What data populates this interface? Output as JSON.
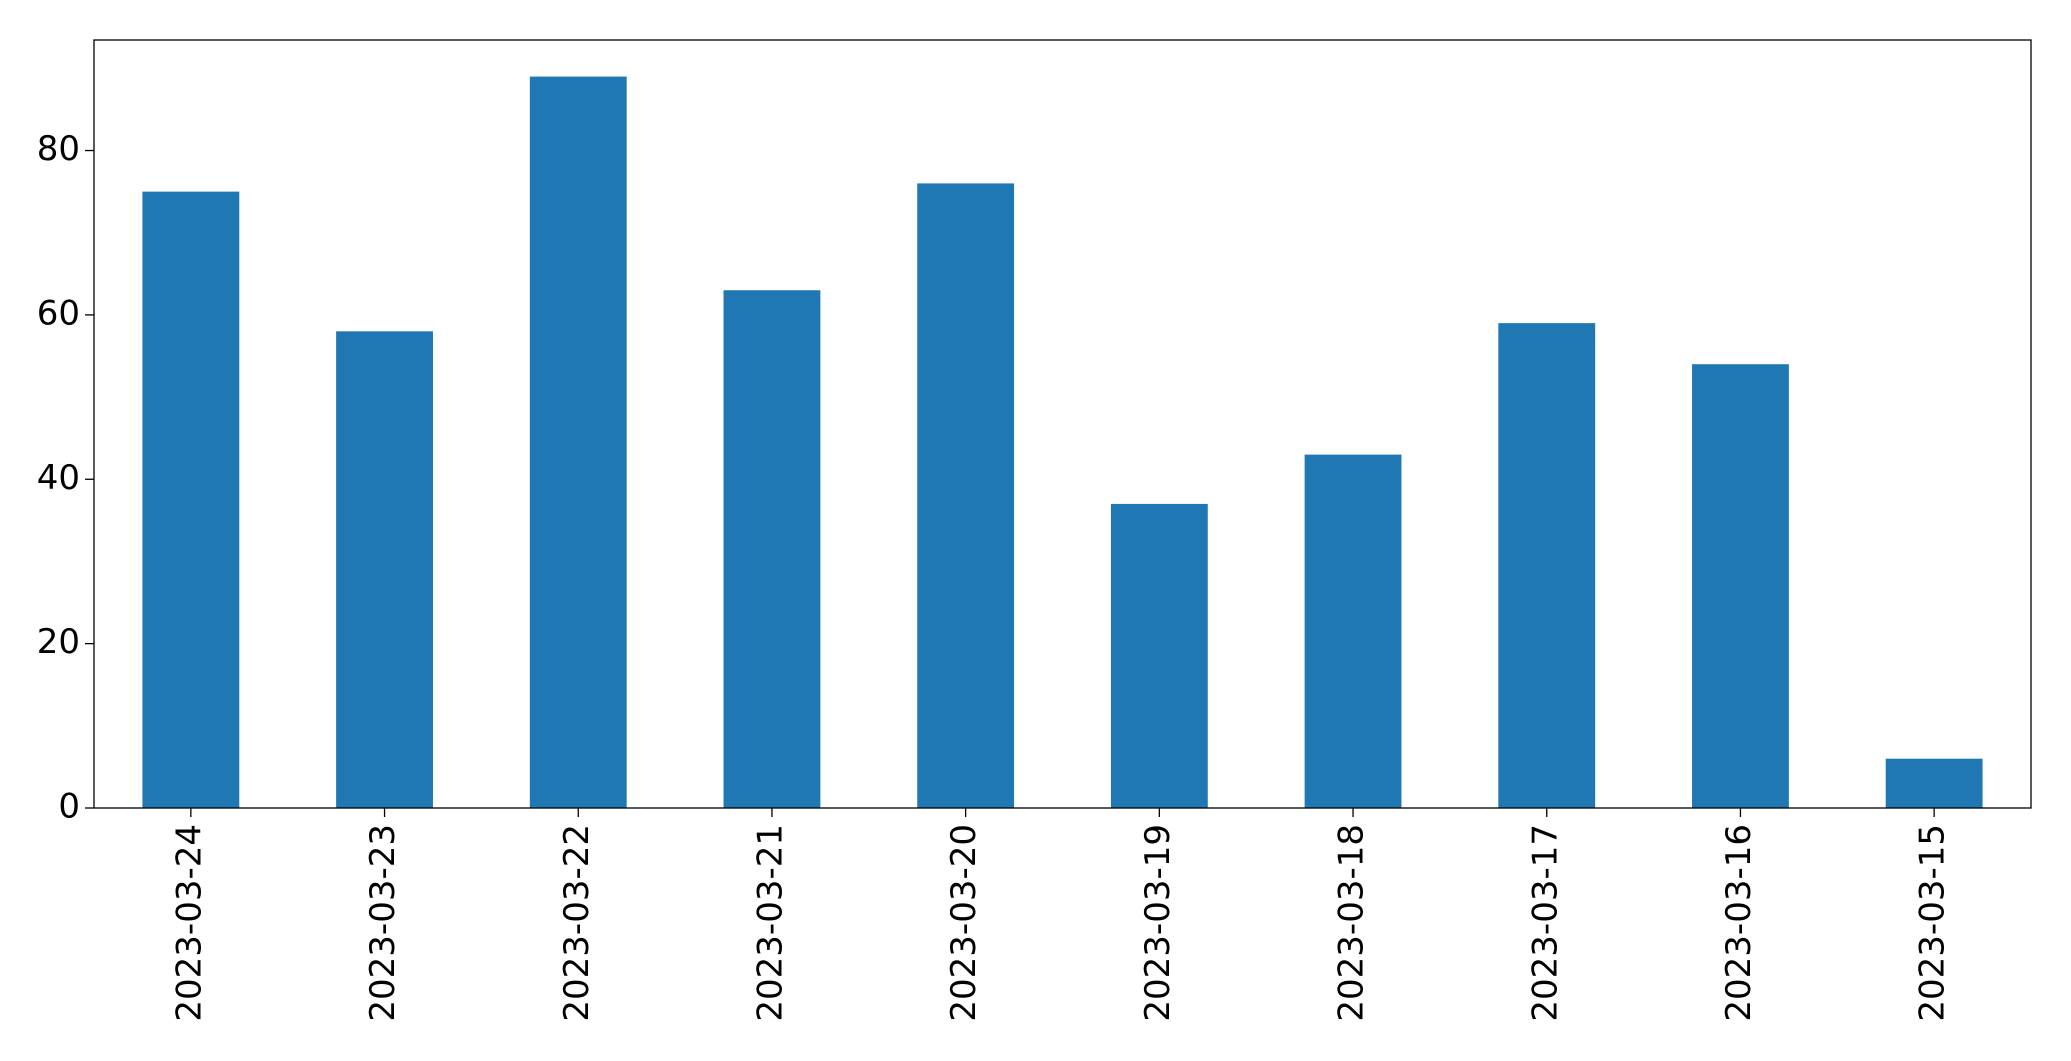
{
  "chart_data": {
    "type": "bar",
    "categories": [
      "2023-03-24",
      "2023-03-23",
      "2023-03-22",
      "2023-03-21",
      "2023-03-20",
      "2023-03-19",
      "2023-03-18",
      "2023-03-17",
      "2023-03-16",
      "2023-03-15"
    ],
    "values": [
      75,
      58,
      89,
      63,
      76,
      37,
      43,
      59,
      54,
      6
    ],
    "color": "#1f77b4",
    "ylim": [
      0,
      93.45
    ],
    "yticks": [
      0,
      20,
      40,
      60,
      80
    ],
    "grid": false
  }
}
